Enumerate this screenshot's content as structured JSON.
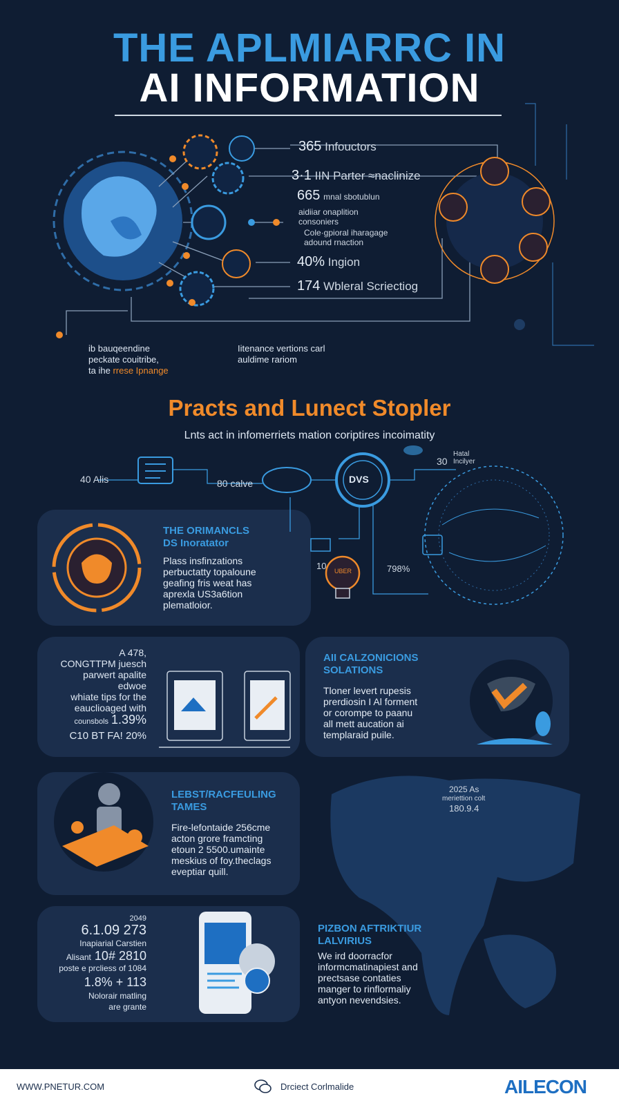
{
  "header": {
    "title_line1": "THE APLMIARRC IN",
    "title_line2": "AI INFORMATION"
  },
  "top_stats": [
    {
      "num": "365",
      "label": "Infouctors"
    },
    {
      "num": "3·1",
      "label": "IIN Parter ≈naclinize"
    },
    {
      "num": "665",
      "label": "mnal sbotublun"
    },
    {
      "num": "",
      "label": "aidiiar onaplition\nconsoniers"
    },
    {
      "num": "",
      "label": "Cole·gpioral iharagage\nadound rnaction"
    },
    {
      "num": "40%",
      "label": "Ingion"
    },
    {
      "num": "174",
      "label": "Wbleral Scriectiog"
    }
  ],
  "top_captions": {
    "left_lines": "ib bauqeendine\npeckate couitribe,\nta ihe",
    "left_highlight": "rrese Ipnange",
    "right_lines": "Iitenance vertions carl\nauldime rariom"
  },
  "section": {
    "title": "Practs and Lunect Stopler",
    "subtitle": "Lnts act in infomerriets mation coriptires incoimatity"
  },
  "diagram": {
    "label_40": "40 Alis",
    "label_80": "80 calve",
    "label_30": "30",
    "label_30_small": "Hatal\nIncilyer",
    "label_dvs": "DVS",
    "label_10": "10",
    "label_798": "798%",
    "bulb_text": "UBER"
  },
  "card1": {
    "heading": "THE ORIMANCLS\nDS Inoratator",
    "body": "Plass insfinzations\nperbuctatty topaloune\ngeafing fris weat has\naprexla US3a6tion\nplematloior."
  },
  "card2": {
    "left_text": "A 478,\nCONGTTPM juesch\nparwert apalite\nedwoe\nwhiate tips for the\neauclioaged with",
    "stat_a_label": "counsbols",
    "stat_a_value": "1.39%",
    "stat_b": "C10 BT FA! 20%"
  },
  "card3": {
    "heading": "AII CALZONICIONS\nSOLATIONS",
    "body": "Tloner levert rupesis\nprerdiosin I Al forment\nor corompe to paanu\nall mett aucation ai\ntemplaraid puile."
  },
  "card4": {
    "heading": "LEBST/RACFEULING\nTAMES",
    "body": "Fire-lefontaide 256cme\nacton grore framcting\netoun 2 5500.umainte\nmeskius of foy.theclags\neveptiar quill."
  },
  "map_stats": {
    "line1": "2025 As",
    "line2": "meriettion colt",
    "line3": "180.9.4"
  },
  "card5": {
    "year": "2049",
    "n1": "6.1.09 273",
    "t1": "Inapiarial Carstien",
    "n2_label": "Alisant",
    "n2": "10# 2810",
    "t2": "poste e prcliess of 1084",
    "n3": "1.8% + 113",
    "t3": "Nolorair matling\nare grante"
  },
  "card6": {
    "heading": "PIZBON AFTRIKTIUR\nLALVIRIUS",
    "body": "We ird doorracfor\ninformcmatinapiest and\nprectsase contaties\nmanger to rinflormaliy\nantyon nevendsies."
  },
  "footer": {
    "url": "WWW.PNETUR.COM",
    "mid": "Drciect Corlmalide",
    "brand": "AILECON"
  },
  "colors": {
    "background": "#0f1d33",
    "card": "#1b2e4c",
    "accent_blue": "#3a9be0",
    "accent_orange": "#f08a2a"
  }
}
